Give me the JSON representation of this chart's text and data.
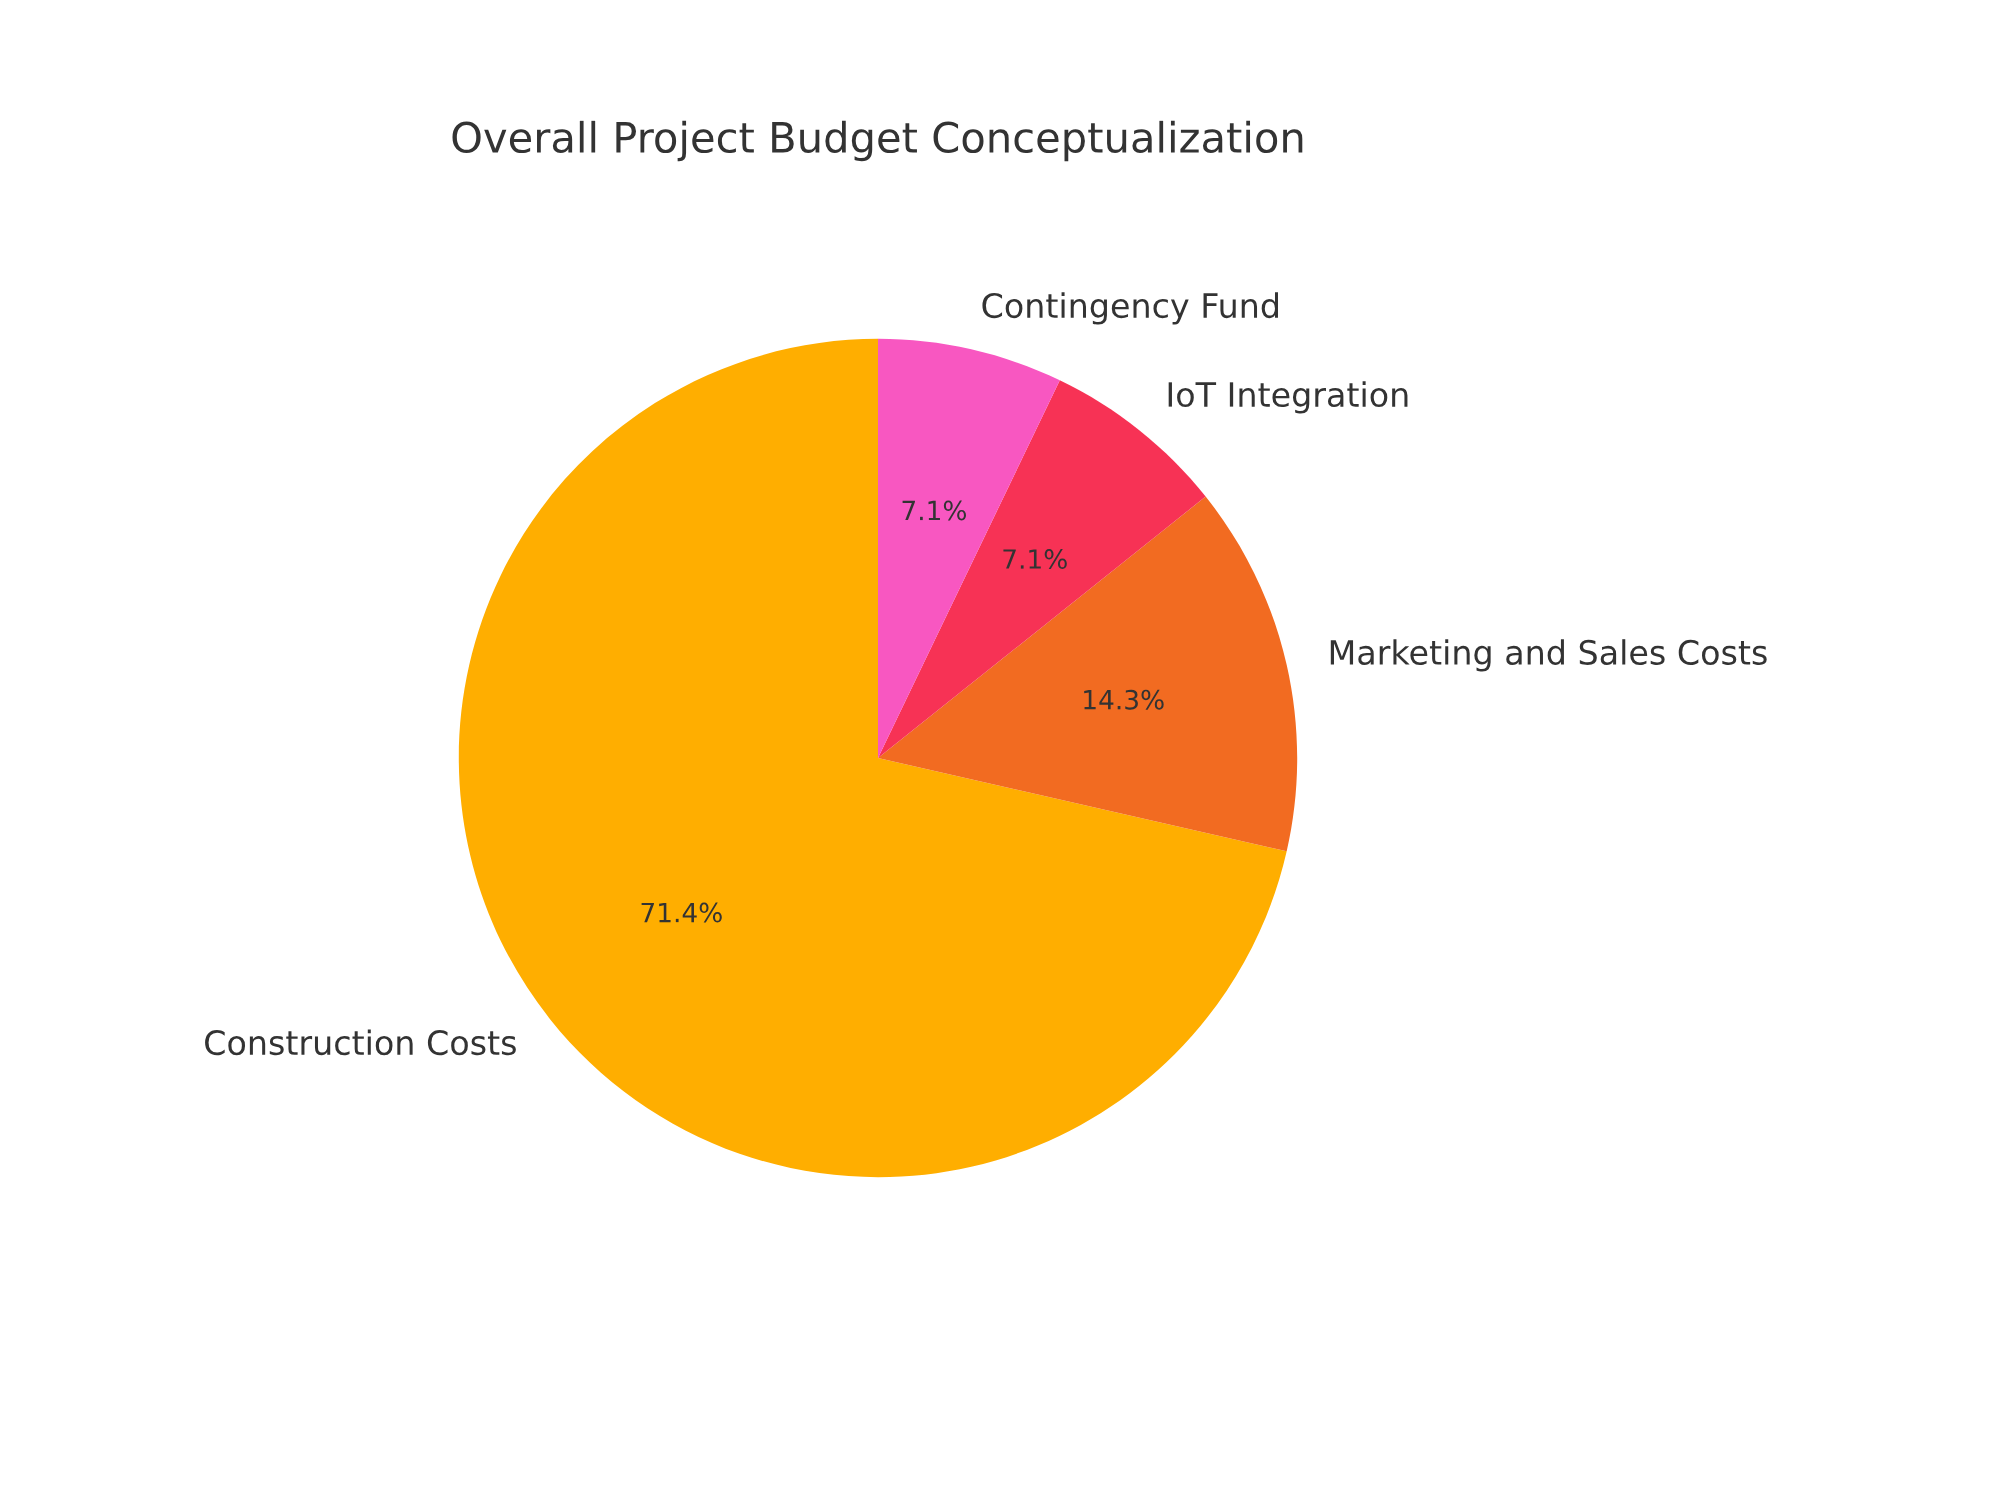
{
  "chart_data": {
    "type": "pie",
    "title": "Overall Project Budget Conceptualization",
    "categories": [
      "Construction Costs",
      "Marketing and Sales Costs",
      "IoT Integration",
      "Contingency Fund"
    ],
    "values": [
      71.43,
      14.29,
      7.14,
      7.14
    ],
    "colors": [
      "#ffae00",
      "#f26b21",
      "#f73255",
      "#f857c1"
    ],
    "value_labels": [
      "71.4%",
      "14.3%",
      "7.1%",
      "7.1%"
    ]
  }
}
